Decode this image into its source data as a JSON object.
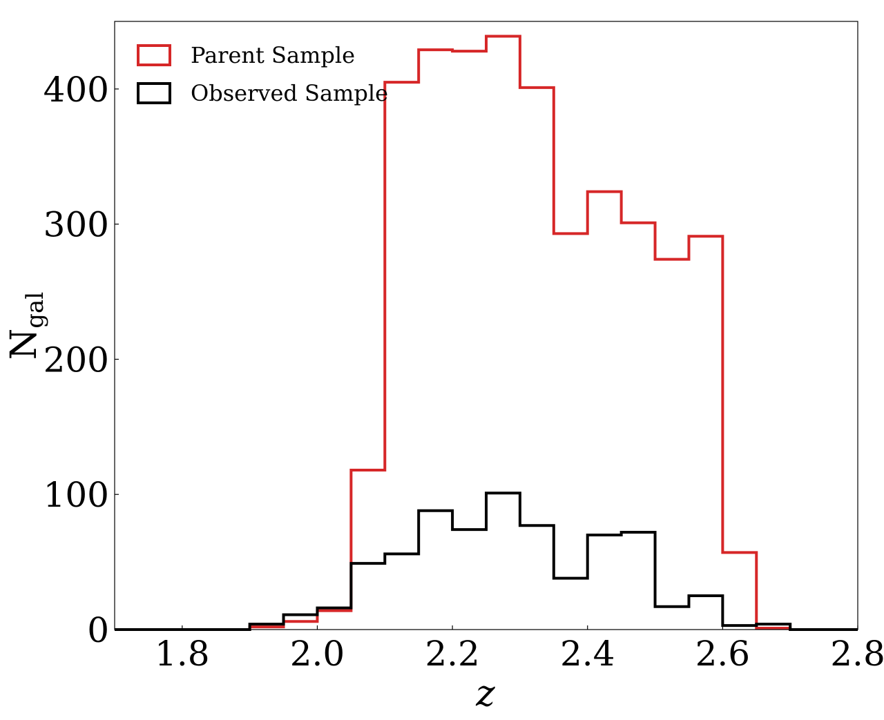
{
  "chart_data": {
    "type": "histogram",
    "xlabel": "z",
    "ylabel": "N",
    "ylabel_subscript": "gal",
    "xlim": [
      1.7,
      2.8
    ],
    "ylim": [
      0,
      450
    ],
    "xticks": [
      1.8,
      2.0,
      2.2,
      2.4,
      2.6,
      2.8
    ],
    "xtick_labels": [
      "1.8",
      "2.0",
      "2.2",
      "2.4",
      "2.6",
      "2.8"
    ],
    "yticks": [
      0,
      100,
      200,
      300,
      400
    ],
    "ytick_labels": [
      "0",
      "100",
      "200",
      "300",
      "400"
    ],
    "grid": false,
    "legend_position": "top-left",
    "bin_edges": [
      1.7,
      1.75,
      1.8,
      1.85,
      1.9,
      1.95,
      2.0,
      2.05,
      2.1,
      2.15,
      2.2,
      2.25,
      2.3,
      2.35,
      2.4,
      2.45,
      2.5,
      2.55,
      2.6,
      2.65,
      2.7,
      2.75,
      2.8
    ],
    "series": [
      {
        "name": "Parent Sample",
        "color": "#d62728",
        "values": [
          0,
          0,
          0,
          0,
          2,
          6,
          14,
          118,
          405,
          429,
          428,
          439,
          401,
          293,
          324,
          301,
          274,
          291,
          57,
          1,
          0,
          0
        ]
      },
      {
        "name": "Observed Sample",
        "color": "#000000",
        "values": [
          0,
          0,
          0,
          0,
          4,
          11,
          16,
          49,
          56,
          88,
          74,
          101,
          77,
          38,
          70,
          72,
          17,
          25,
          3,
          4,
          0,
          0
        ]
      }
    ]
  }
}
